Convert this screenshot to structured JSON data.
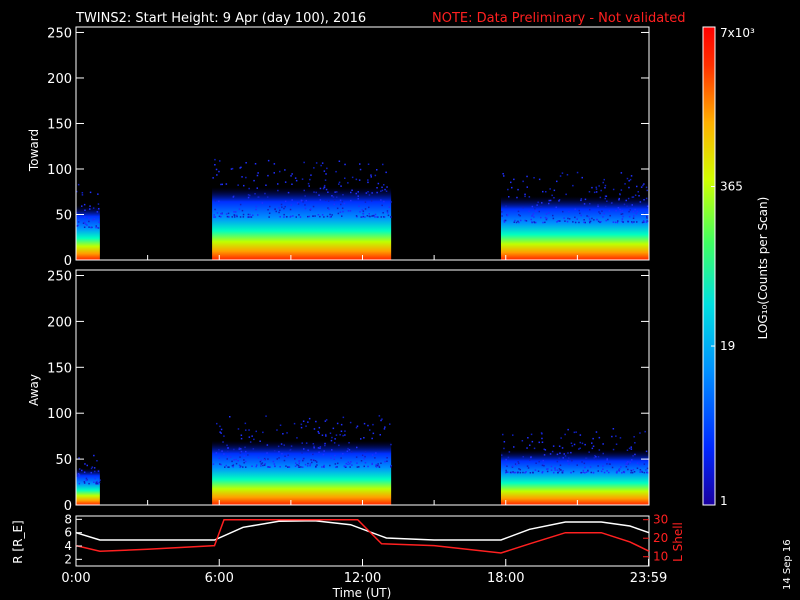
{
  "header": {
    "title": "TWINS2: Start Height:  9 Apr (day 100), 2016",
    "note": "NOTE: Data Preliminary - Not validated"
  },
  "footer": {
    "date_stamp": "14 Sep 16"
  },
  "colors": {
    "note": "#ff2020",
    "trace_r": "#ffffff",
    "trace_lshell": "#ff2020"
  },
  "chart_data": [
    {
      "type": "heatmap",
      "name": "toward",
      "ylabel": "Toward",
      "ylim": [
        0,
        256
      ],
      "yticks": [
        "0",
        "50",
        "100",
        "150",
        "200",
        "250"
      ],
      "ytick_values": [
        0,
        50,
        100,
        150,
        200,
        250
      ],
      "xlim": [
        0,
        24
      ],
      "intervals_ut_hours": [
        [
          0,
          1
        ],
        [
          5.7,
          13.2
        ],
        [
          17.8,
          24
        ]
      ],
      "spread_height": [
        60,
        80,
        70
      ]
    },
    {
      "type": "heatmap",
      "name": "away",
      "ylabel": "Away",
      "ylim": [
        0,
        256
      ],
      "yticks": [
        "0",
        "50",
        "100",
        "150",
        "200",
        "250"
      ],
      "ytick_values": [
        0,
        50,
        100,
        150,
        200,
        250
      ],
      "xlim": [
        0,
        24
      ],
      "intervals_ut_hours": [
        [
          0,
          1
        ],
        [
          5.7,
          13.2
        ],
        [
          17.8,
          24
        ]
      ],
      "spread_height": [
        40,
        70,
        60
      ]
    },
    {
      "type": "line",
      "name": "orbit",
      "ylabel_left": "R [R_E]",
      "ylabel_right": "L Shell",
      "yticks_left": [
        "2",
        "4",
        "6",
        "8"
      ],
      "ytick_values_left": [
        2,
        4,
        6,
        8
      ],
      "yticks_right": [
        "10",
        "20",
        "30"
      ],
      "ytick_values_right": [
        10,
        20,
        30
      ],
      "ylim_left": [
        1,
        8.5
      ],
      "ylim_right": [
        5,
        32
      ],
      "xlim": [
        0,
        24
      ],
      "xticks": [
        "0:00",
        "6:00",
        "12:00",
        "18:00",
        "23:59"
      ],
      "xtick_values": [
        0,
        6,
        12,
        18,
        23.98
      ],
      "xlabel": "Time (UT)",
      "series": [
        {
          "name": "R [R_E]",
          "x": [
            0,
            1,
            3,
            5.8,
            7,
            8.5,
            10,
            11.5,
            13,
            15,
            17.8,
            19,
            20.5,
            22,
            23.2,
            24
          ],
          "values": [
            6.0,
            4.9,
            4.9,
            4.9,
            6.8,
            7.7,
            7.8,
            7.2,
            5.2,
            4.9,
            4.9,
            6.5,
            7.6,
            7.6,
            7.0,
            6.0
          ]
        },
        {
          "name": "L Shell",
          "x": [
            0,
            1,
            3,
            5.8,
            6.2,
            11.8,
            12.8,
            15,
            17.8,
            19,
            20.5,
            22,
            23.2,
            24
          ],
          "values": [
            16,
            13,
            14,
            16,
            30,
            30,
            17,
            16,
            12,
            17,
            23,
            23,
            18,
            13
          ]
        }
      ]
    }
  ],
  "colorbar": {
    "label": "LOG₁₀(Counts per Scan)",
    "ticks": [
      "1",
      "19",
      "365",
      "7x10³"
    ],
    "tick_values": [
      1,
      19,
      365,
      7000
    ],
    "scale": "log"
  }
}
